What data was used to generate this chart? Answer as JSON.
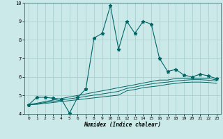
{
  "xlabel": "Humidex (Indice chaleur)",
  "ylabel": "",
  "xlim": [
    -0.5,
    23.5
  ],
  "ylim": [
    4,
    10
  ],
  "yticks": [
    4,
    5,
    6,
    7,
    8,
    9,
    10
  ],
  "xticks": [
    0,
    1,
    2,
    3,
    4,
    5,
    6,
    7,
    8,
    9,
    10,
    11,
    12,
    13,
    14,
    15,
    16,
    17,
    18,
    19,
    20,
    21,
    22,
    23
  ],
  "background_color": "#cce9e9",
  "grid_color": "#aad0d0",
  "line_color": "#006666",
  "lines": [
    {
      "x": [
        0,
        1,
        2,
        3,
        4,
        5,
        6,
        7,
        8,
        9,
        10,
        11,
        12,
        13,
        14,
        15,
        16,
        17,
        18,
        19,
        20,
        21,
        22,
        23
      ],
      "y": [
        4.5,
        4.9,
        4.9,
        4.85,
        4.8,
        4.05,
        4.9,
        5.35,
        8.1,
        8.35,
        9.85,
        7.5,
        9.0,
        8.35,
        9.0,
        8.85,
        7.0,
        6.3,
        6.4,
        6.1,
        6.0,
        6.15,
        6.05,
        5.9
      ],
      "marker": true
    },
    {
      "x": [
        0,
        1,
        2,
        3,
        4,
        5,
        6,
        7,
        8,
        9,
        10,
        11,
        12,
        13,
        14,
        15,
        16,
        17,
        18,
        19,
        20,
        21,
        22,
        23
      ],
      "y": [
        4.5,
        4.58,
        4.67,
        4.75,
        4.83,
        4.92,
        5.0,
        5.08,
        5.17,
        5.25,
        5.33,
        5.42,
        5.5,
        5.58,
        5.67,
        5.75,
        5.83,
        5.83,
        5.92,
        5.92,
        5.92,
        5.92,
        5.92,
        5.83
      ],
      "marker": false
    },
    {
      "x": [
        0,
        1,
        2,
        3,
        4,
        5,
        6,
        7,
        8,
        9,
        10,
        11,
        12,
        13,
        14,
        15,
        16,
        17,
        18,
        19,
        20,
        21,
        22,
        23
      ],
      "y": [
        4.5,
        4.55,
        4.62,
        4.68,
        4.75,
        4.82,
        4.88,
        4.95,
        5.02,
        5.08,
        5.15,
        5.22,
        5.38,
        5.45,
        5.55,
        5.62,
        5.68,
        5.72,
        5.78,
        5.82,
        5.85,
        5.85,
        5.82,
        5.78
      ],
      "marker": false
    },
    {
      "x": [
        0,
        1,
        2,
        3,
        4,
        5,
        6,
        7,
        8,
        9,
        10,
        11,
        12,
        13,
        14,
        15,
        16,
        17,
        18,
        19,
        20,
        21,
        22,
        23
      ],
      "y": [
        4.5,
        4.52,
        4.57,
        4.62,
        4.67,
        4.72,
        4.77,
        4.82,
        4.87,
        4.92,
        4.97,
        5.02,
        5.25,
        5.32,
        5.42,
        5.47,
        5.52,
        5.6,
        5.65,
        5.7,
        5.72,
        5.72,
        5.7,
        5.65
      ],
      "marker": false
    }
  ]
}
